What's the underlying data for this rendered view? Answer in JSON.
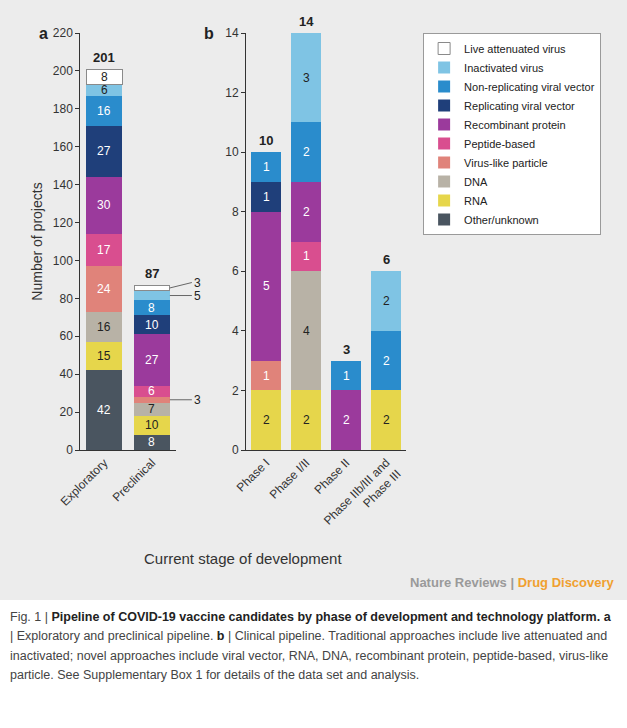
{
  "chart_data": [
    {
      "type": "bar",
      "title": "a",
      "stacked": true,
      "data_labels": true,
      "grid": false,
      "legend": "right",
      "ylabel": "Number of projects",
      "categories": [
        "Exploratory",
        "Preclinical"
      ],
      "totals": [
        201,
        87
      ],
      "ylim": [
        0,
        220
      ],
      "yticks": [
        0,
        20,
        40,
        60,
        80,
        100,
        120,
        140,
        160,
        180,
        200,
        220
      ],
      "series": [
        {
          "name": "Other/unknown",
          "color": "#4a5560",
          "values": [
            42,
            8
          ]
        },
        {
          "name": "RNA",
          "color": "#e6d64b",
          "values": [
            15,
            10
          ]
        },
        {
          "name": "DNA",
          "color": "#b8b2a6",
          "values": [
            16,
            7
          ]
        },
        {
          "name": "Virus-like particle",
          "color": "#e0837a",
          "values": [
            24,
            3
          ]
        },
        {
          "name": "Peptide-based",
          "color": "#d94e8f",
          "values": [
            17,
            6
          ]
        },
        {
          "name": "Recombinant protein",
          "color": "#9b3a9c",
          "values": [
            30,
            27
          ]
        },
        {
          "name": "Replicating viral vector",
          "color": "#1f3f7a",
          "values": [
            27,
            10
          ]
        },
        {
          "name": "Non-replicating viral vector",
          "color": "#2a8ccc",
          "values": [
            16,
            8
          ]
        },
        {
          "name": "Inactivated virus",
          "color": "#7fc4e4",
          "values": [
            6,
            5
          ]
        },
        {
          "name": "Live attenuated virus",
          "color": "#ffffff",
          "values": [
            8,
            3
          ]
        }
      ]
    },
    {
      "type": "bar",
      "title": "b",
      "stacked": true,
      "data_labels": true,
      "grid": false,
      "categories": [
        "Phase I",
        "Phase I/II",
        "Phase II",
        "Phase IIb/III and Phase III"
      ],
      "totals": [
        10,
        14,
        3,
        6
      ],
      "ylim": [
        0,
        14
      ],
      "yticks": [
        0,
        2,
        4,
        6,
        8,
        10,
        12,
        14
      ],
      "series": [
        {
          "name": "Other/unknown",
          "color": "#4a5560",
          "values": [
            null,
            null,
            null,
            null
          ]
        },
        {
          "name": "RNA",
          "color": "#e6d64b",
          "values": [
            2,
            2,
            null,
            2
          ]
        },
        {
          "name": "DNA",
          "color": "#b8b2a6",
          "values": [
            null,
            4,
            null,
            null
          ]
        },
        {
          "name": "Virus-like particle",
          "color": "#e0837a",
          "values": [
            1,
            null,
            null,
            null
          ]
        },
        {
          "name": "Peptide-based",
          "color": "#d94e8f",
          "values": [
            null,
            1,
            null,
            null
          ]
        },
        {
          "name": "Recombinant protein",
          "color": "#9b3a9c",
          "values": [
            5,
            2,
            2,
            null
          ]
        },
        {
          "name": "Replicating viral vector",
          "color": "#1f3f7a",
          "values": [
            1,
            null,
            null,
            null
          ]
        },
        {
          "name": "Non-replicating viral vector",
          "color": "#2a8ccc",
          "values": [
            1,
            2,
            1,
            2
          ]
        },
        {
          "name": "Inactivated virus",
          "color": "#7fc4e4",
          "values": [
            null,
            3,
            null,
            2
          ]
        },
        {
          "name": "Live attenuated virus",
          "color": "#ffffff",
          "values": [
            null,
            null,
            null,
            null
          ]
        }
      ]
    }
  ],
  "xlabel": "Current stage of development",
  "credit": [
    "Nature Reviews |",
    "Drug Discovery"
  ],
  "caption": [
    {
      "text": "Fig. 1 | ",
      "bold": false
    },
    {
      "text": "Pipeline of COVID-19 vaccine candidates by phase of development and technology platform.",
      "bold": true
    },
    {
      "text": " ",
      "bold": false
    },
    {
      "text": "a",
      "bold": true
    },
    {
      "text": " | Exploratory and preclinical pipeline. ",
      "bold": false
    },
    {
      "text": "b",
      "bold": true
    },
    {
      "text": " | Clinical pipeline. Traditional approaches include live attenuated and inactivated; novel approaches include viral vector, RNA, DNA, recombinant protein, peptide-based, virus-like particle. See Supplementary Box 1 for details of the data set and analysis.",
      "bold": false
    }
  ]
}
